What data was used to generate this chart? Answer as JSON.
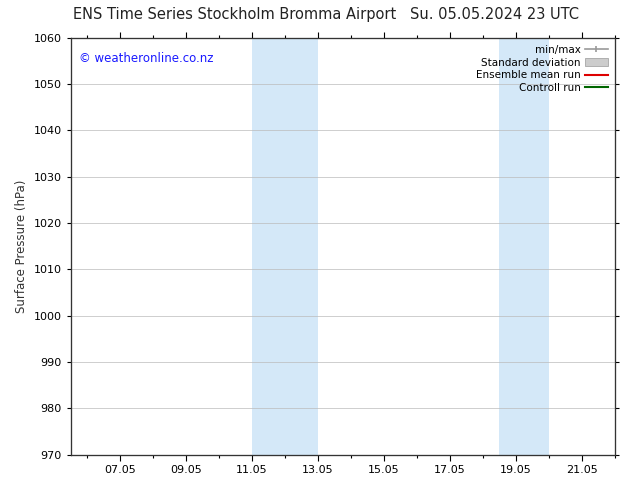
{
  "title_left": "ENS Time Series Stockholm Bromma Airport",
  "title_right": "Su. 05.05.2024 23 UTC",
  "ylabel": "Surface Pressure (hPa)",
  "ylim": [
    970,
    1060
  ],
  "yticks": [
    970,
    980,
    990,
    1000,
    1010,
    1020,
    1030,
    1040,
    1050,
    1060
  ],
  "xlim_start": 5.5,
  "xlim_end": 22.0,
  "xtick_positions": [
    7.0,
    9.0,
    11.0,
    13.0,
    15.0,
    17.0,
    19.0,
    21.0
  ],
  "xtick_labels": [
    "07.05",
    "09.05",
    "11.05",
    "13.05",
    "15.05",
    "17.05",
    "19.05",
    "21.05"
  ],
  "shaded_bands": [
    {
      "x_start": 11.0,
      "x_end": 13.0
    },
    {
      "x_start": 18.5,
      "x_end": 20.0
    }
  ],
  "shade_color": "#d4e8f8",
  "watermark_text": "© weatheronline.co.nz",
  "watermark_color": "#1a1aff",
  "watermark_fontsize": 8.5,
  "legend_entries": [
    {
      "label": "min/max",
      "color": "#999999",
      "type": "minmax"
    },
    {
      "label": "Standard deviation",
      "color": "#cccccc",
      "type": "stdev"
    },
    {
      "label": "Ensemble mean run",
      "color": "#dd0000",
      "type": "line"
    },
    {
      "label": "Controll run",
      "color": "#006600",
      "type": "line"
    }
  ],
  "background_color": "#ffffff",
  "grid_color": "#bbbbbb",
  "title_fontsize": 10.5,
  "axis_fontsize": 8.5,
  "tick_fontsize": 8,
  "legend_fontsize": 7.5
}
